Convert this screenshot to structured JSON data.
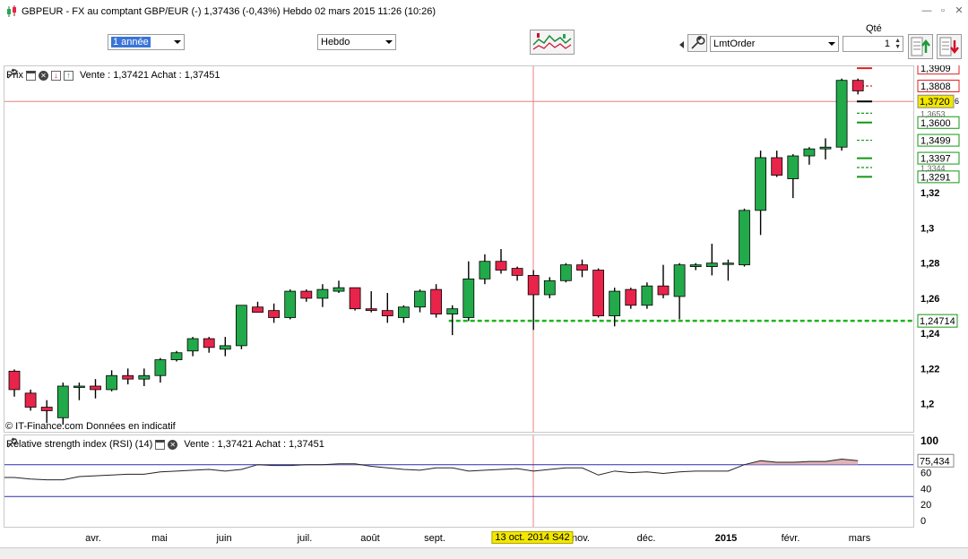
{
  "window": {
    "title": "GBPEUR - FX au comptant GBP/EUR (-)    1,37436 (-0,43%)    Hebdo  02 mars 2015 11:26 (10:26)"
  },
  "toolbar": {
    "period_value": "1 année",
    "interval_value": "Hebdo",
    "order_type_value": "LmtOrder",
    "qty_label": "Qté",
    "qty_value": "1"
  },
  "price_panel": {
    "name": "Prix",
    "quote": "Vente : 1,37421 Achat : 1,37451",
    "copyright": "© IT-Finance.com  Données en indicatif",
    "current_price_label": "1,3720",
    "current_price_suffix": "6",
    "support_label": "1,24714",
    "axis_ticks": [
      "1,32",
      "1,3",
      "1,28",
      "1,26",
      "1,24",
      "1,22",
      "1,2"
    ],
    "order_levels": [
      "1,3909",
      "1,3808",
      "1,3600",
      "1,3499",
      "1,3397",
      "1,3291"
    ],
    "hidden_levels": [
      "1,3653",
      "1,3344"
    ]
  },
  "rsi_panel": {
    "name": "Relative strength index (RSI) (14)",
    "quote": "Vente : 1,37421 Achat : 1,37451",
    "value_label": "75,434",
    "axis_ticks": [
      "100",
      "60",
      "40",
      "20",
      "0"
    ]
  },
  "time_axis": {
    "labels": [
      "avr.",
      "mai",
      "juin",
      "juil.",
      "août",
      "sept.",
      "nov.",
      "déc.",
      "2015",
      "févr.",
      "mars"
    ],
    "crosshair_date": "13 oct. 2014 S42"
  },
  "colors": {
    "bull": "#22a94a",
    "bear": "#e8244a",
    "support": "#1fb31f",
    "crosshair": "#e88080",
    "rsi_band": "#2b2bb0"
  },
  "chart_data": {
    "type": "candlestick",
    "interval": "weekly",
    "ylim": [
      1.184,
      1.392
    ],
    "candles": [
      {
        "o": 1.2185,
        "h": 1.2195,
        "l": 1.204,
        "c": 1.208
      },
      {
        "o": 1.206,
        "h": 1.208,
        "l": 1.196,
        "c": 1.198
      },
      {
        "o": 1.198,
        "h": 1.202,
        "l": 1.189,
        "c": 1.196
      },
      {
        "o": 1.192,
        "h": 1.212,
        "l": 1.188,
        "c": 1.21
      },
      {
        "o": 1.21,
        "h": 1.212,
        "l": 1.202,
        "c": 1.21
      },
      {
        "o": 1.21,
        "h": 1.214,
        "l": 1.203,
        "c": 1.208
      },
      {
        "o": 1.208,
        "h": 1.219,
        "l": 1.207,
        "c": 1.216
      },
      {
        "o": 1.216,
        "h": 1.22,
        "l": 1.211,
        "c": 1.214
      },
      {
        "o": 1.214,
        "h": 1.22,
        "l": 1.21,
        "c": 1.216
      },
      {
        "o": 1.216,
        "h": 1.226,
        "l": 1.212,
        "c": 1.225
      },
      {
        "o": 1.225,
        "h": 1.23,
        "l": 1.224,
        "c": 1.229
      },
      {
        "o": 1.23,
        "h": 1.238,
        "l": 1.227,
        "c": 1.237
      },
      {
        "o": 1.237,
        "h": 1.238,
        "l": 1.229,
        "c": 1.232
      },
      {
        "o": 1.231,
        "h": 1.238,
        "l": 1.227,
        "c": 1.233
      },
      {
        "o": 1.233,
        "h": 1.256,
        "l": 1.231,
        "c": 1.256
      },
      {
        "o": 1.255,
        "h": 1.258,
        "l": 1.252,
        "c": 1.252
      },
      {
        "o": 1.253,
        "h": 1.257,
        "l": 1.246,
        "c": 1.249
      },
      {
        "o": 1.249,
        "h": 1.265,
        "l": 1.248,
        "c": 1.264
      },
      {
        "o": 1.264,
        "h": 1.265,
        "l": 1.258,
        "c": 1.26
      },
      {
        "o": 1.26,
        "h": 1.268,
        "l": 1.255,
        "c": 1.265
      },
      {
        "o": 1.264,
        "h": 1.27,
        "l": 1.263,
        "c": 1.266
      },
      {
        "o": 1.266,
        "h": 1.266,
        "l": 1.253,
        "c": 1.254
      },
      {
        "o": 1.254,
        "h": 1.264,
        "l": 1.252,
        "c": 1.253
      },
      {
        "o": 1.253,
        "h": 1.263,
        "l": 1.246,
        "c": 1.25
      },
      {
        "o": 1.249,
        "h": 1.256,
        "l": 1.246,
        "c": 1.255
      },
      {
        "o": 1.255,
        "h": 1.265,
        "l": 1.252,
        "c": 1.264
      },
      {
        "o": 1.265,
        "h": 1.268,
        "l": 1.249,
        "c": 1.251
      },
      {
        "o": 1.251,
        "h": 1.256,
        "l": 1.239,
        "c": 1.254
      },
      {
        "o": 1.249,
        "h": 1.281,
        "l": 1.247,
        "c": 1.271
      },
      {
        "o": 1.271,
        "h": 1.285,
        "l": 1.268,
        "c": 1.281
      },
      {
        "o": 1.281,
        "h": 1.288,
        "l": 1.274,
        "c": 1.276
      },
      {
        "o": 1.277,
        "h": 1.278,
        "l": 1.27,
        "c": 1.273
      },
      {
        "o": 1.273,
        "h": 1.276,
        "l": 1.242,
        "c": 1.262
      },
      {
        "o": 1.262,
        "h": 1.272,
        "l": 1.26,
        "c": 1.27
      },
      {
        "o": 1.27,
        "h": 1.28,
        "l": 1.269,
        "c": 1.279
      },
      {
        "o": 1.279,
        "h": 1.282,
        "l": 1.272,
        "c": 1.276
      },
      {
        "o": 1.276,
        "h": 1.277,
        "l": 1.249,
        "c": 1.25
      },
      {
        "o": 1.25,
        "h": 1.266,
        "l": 1.244,
        "c": 1.264
      },
      {
        "o": 1.265,
        "h": 1.266,
        "l": 1.254,
        "c": 1.256
      },
      {
        "o": 1.256,
        "h": 1.269,
        "l": 1.254,
        "c": 1.267
      },
      {
        "o": 1.267,
        "h": 1.279,
        "l": 1.26,
        "c": 1.262
      },
      {
        "o": 1.261,
        "h": 1.28,
        "l": 1.248,
        "c": 1.279
      },
      {
        "o": 1.278,
        "h": 1.28,
        "l": 1.276,
        "c": 1.279
      },
      {
        "o": 1.278,
        "h": 1.291,
        "l": 1.273,
        "c": 1.28
      },
      {
        "o": 1.28,
        "h": 1.282,
        "l": 1.27,
        "c": 1.28
      },
      {
        "o": 1.279,
        "h": 1.311,
        "l": 1.278,
        "c": 1.31
      },
      {
        "o": 1.31,
        "h": 1.344,
        "l": 1.296,
        "c": 1.34
      },
      {
        "o": 1.34,
        "h": 1.344,
        "l": 1.329,
        "c": 1.33
      },
      {
        "o": 1.328,
        "h": 1.342,
        "l": 1.317,
        "c": 1.341
      },
      {
        "o": 1.341,
        "h": 1.346,
        "l": 1.336,
        "c": 1.345
      },
      {
        "o": 1.345,
        "h": 1.351,
        "l": 1.339,
        "c": 1.346
      },
      {
        "o": 1.346,
        "h": 1.385,
        "l": 1.344,
        "c": 1.384
      },
      {
        "o": 1.384,
        "h": 1.385,
        "l": 1.376,
        "c": 1.378
      }
    ],
    "support_level": 1.24714,
    "current_level": 1.372,
    "order_levels": {
      "red": [
        1.3909,
        1.3808
      ],
      "black": [
        1.372
      ],
      "green": [
        1.3653,
        1.36,
        1.3499,
        1.3397,
        1.3344,
        1.3291
      ]
    },
    "rsi": {
      "ylim": [
        0,
        100
      ],
      "bands": [
        70,
        30
      ],
      "values": [
        54,
        52,
        51,
        51,
        55,
        56,
        57,
        58,
        58,
        61,
        62,
        63,
        64,
        62,
        64,
        70,
        69,
        69,
        70,
        70,
        71,
        71,
        68,
        66,
        64,
        63,
        66,
        66,
        62,
        63,
        64,
        65,
        62,
        64,
        66,
        66,
        57,
        62,
        60,
        61,
        59,
        61,
        62,
        62,
        62,
        70,
        75,
        73,
        73,
        74,
        74,
        77,
        75
      ]
    }
  }
}
